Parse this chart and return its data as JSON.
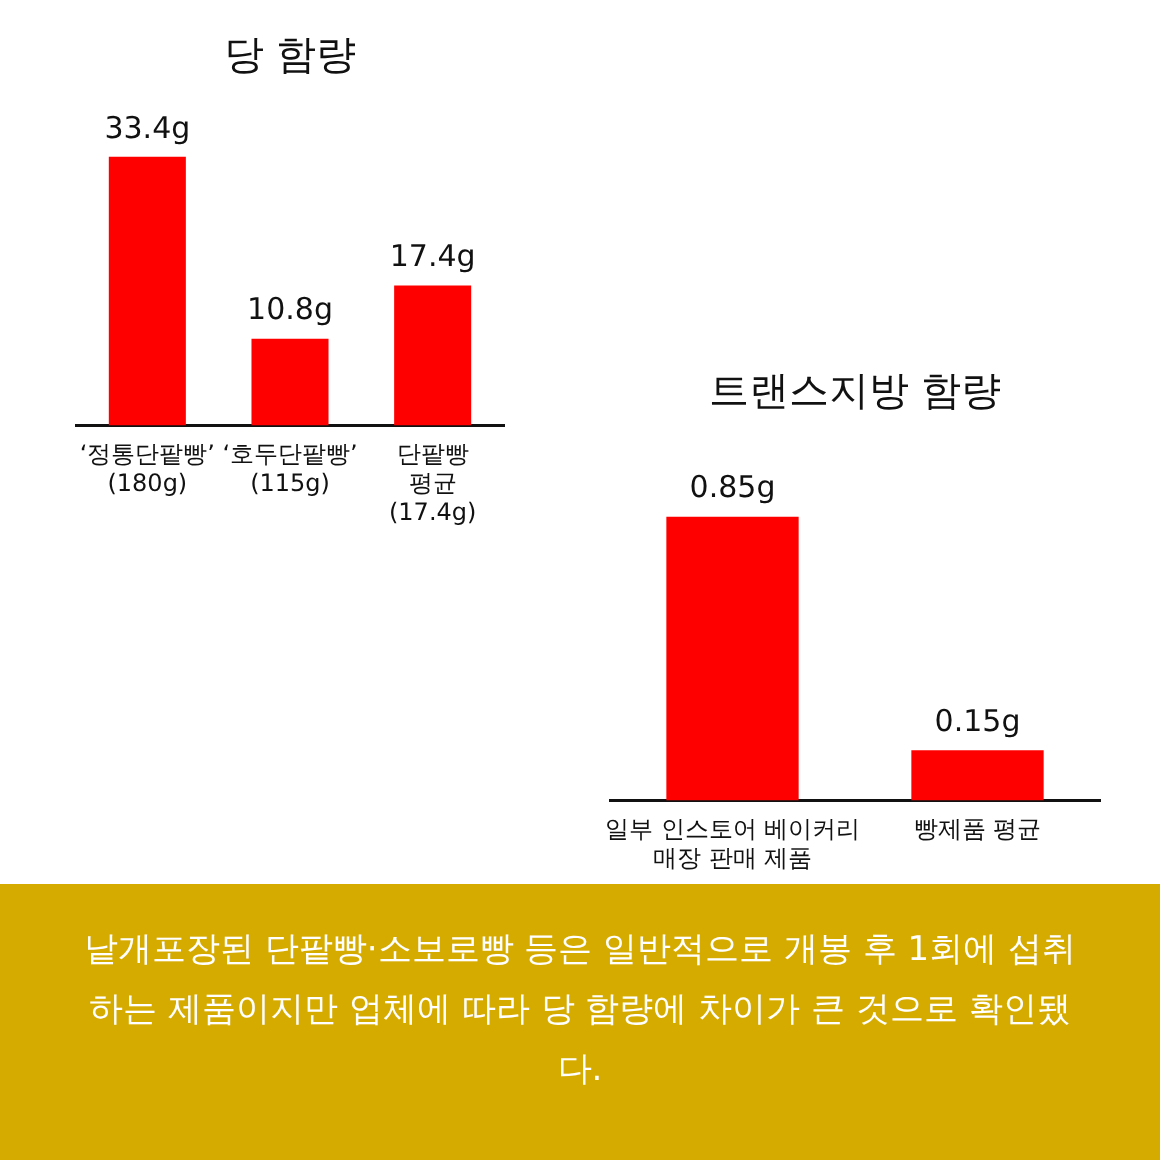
{
  "chart_data": [
    {
      "type": "bar",
      "title": "당 함량",
      "categories": [
        "‘정통단팥빵’\n(180g)",
        "‘호두단팥빵’\n(115g)",
        "단팥빵\n평균\n(17.4g)"
      ],
      "values": [
        33.4,
        10.8,
        17.4
      ],
      "color": "#ff0000",
      "value_labels": [
        "33.4g",
        "10.8g",
        "17.4g"
      ]
    },
    {
      "type": "bar",
      "title": "트랜스지방 함량",
      "categories": [
        "일부 인스토어 베이커리\n매장 판매 제품",
        "빵제품 평균"
      ],
      "values": [
        0.85,
        0.15
      ],
      "color": "#ff0000",
      "value_labels": [
        "0.85g",
        "0.15g"
      ],
      "annotations": [
        "낱개포장된 단팥빵·소보로빵 등은 일반적으로 개봉 후 1회에 섭취하는 제품이지만 업체에 따라 당 함량에 차이가 큰 것으로 확인됐다."
      ]
    }
  ]
}
